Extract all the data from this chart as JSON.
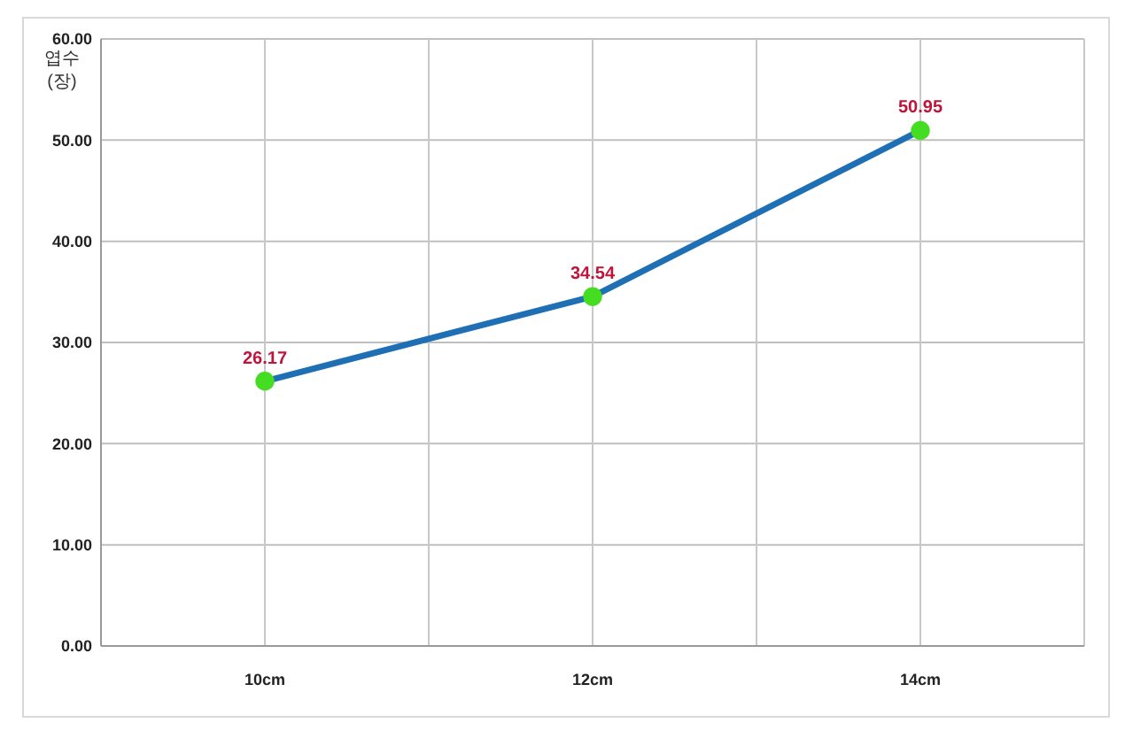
{
  "chart_data": {
    "type": "line",
    "ylabel": "엽수(장)",
    "categories": [
      "10cm",
      "12cm",
      "14cm"
    ],
    "series": [
      {
        "color": "#1f6fb5",
        "values": [
          26.17,
          34.54,
          50.95
        ]
      }
    ],
    "ylim": [
      0,
      60
    ],
    "yticks": [
      {
        "value": 0,
        "label": "0.00"
      },
      {
        "value": 10,
        "label": "10.00"
      },
      {
        "value": 20,
        "label": "20.00"
      },
      {
        "value": 30,
        "label": "30.00"
      },
      {
        "value": 40,
        "label": "40.00"
      },
      {
        "value": 50,
        "label": "50.00"
      },
      {
        "value": 60,
        "label": "60.00"
      }
    ],
    "grid": true,
    "marker": "circle",
    "data_labels": true
  }
}
